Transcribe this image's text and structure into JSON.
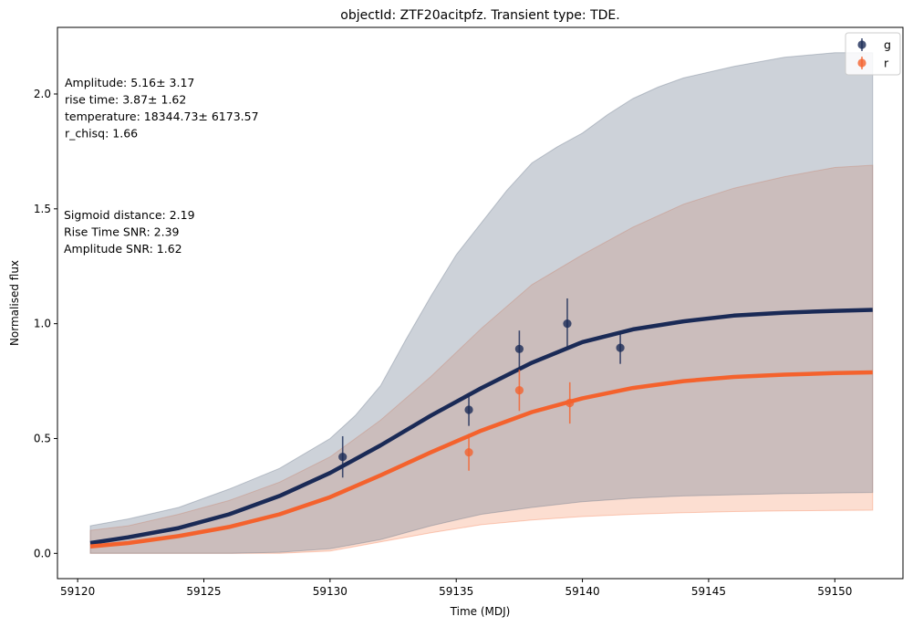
{
  "chart_data": {
    "type": "line",
    "title": "objectId: ZTF20acitpfz. Transient type: TDE.",
    "xlabel": "Time (MDJ)",
    "ylabel": "Normalised flux",
    "xlim": [
      59119.2,
      59152.7
    ],
    "ylim": [
      -0.11,
      2.29
    ],
    "xticks": [
      59120,
      59125,
      59130,
      59135,
      59140,
      59145,
      59150
    ],
    "yticks": [
      0.0,
      0.5,
      1.0,
      1.5,
      2.0
    ],
    "grid": false,
    "legend_position": "top-right",
    "series": [
      {
        "name": "g",
        "color": "#1a2a56",
        "fit_curve": {
          "x": [
            59120.5,
            59122.0,
            59124.0,
            59126.0,
            59128.0,
            59130.0,
            59132.0,
            59134.0,
            59136.0,
            59138.0,
            59140.0,
            59142.0,
            59144.0,
            59146.0,
            59148.0,
            59150.0,
            59151.5
          ],
          "y": [
            0.045,
            0.07,
            0.11,
            0.17,
            0.25,
            0.35,
            0.47,
            0.6,
            0.72,
            0.83,
            0.92,
            0.975,
            1.01,
            1.035,
            1.048,
            1.056,
            1.06
          ]
        },
        "band_upper": {
          "x": [
            59120.5,
            59122.0,
            59124.0,
            59126.0,
            59128.0,
            59130.0,
            59131.0,
            59132.0,
            59133.0,
            59134.0,
            59135.0,
            59136.0,
            59137.0,
            59138.0,
            59139.0,
            59140.0,
            59141.0,
            59142.0,
            59143.0,
            59144.0,
            59146.0,
            59148.0,
            59150.0,
            59151.5
          ],
          "y": [
            0.12,
            0.15,
            0.2,
            0.28,
            0.37,
            0.5,
            0.6,
            0.73,
            0.93,
            1.12,
            1.3,
            1.44,
            1.58,
            1.7,
            1.77,
            1.83,
            1.91,
            1.98,
            2.03,
            2.07,
            2.12,
            2.16,
            2.18,
            2.18
          ]
        },
        "band_lower": {
          "x": [
            59120.5,
            59122.0,
            59124.0,
            59126.0,
            59128.0,
            59130.0,
            59132.0,
            59134.0,
            59136.0,
            59138.0,
            59140.0,
            59142.0,
            59144.0,
            59146.0,
            59148.0,
            59150.0,
            59151.5
          ],
          "y": [
            0.0,
            0.0,
            0.0,
            0.0,
            0.005,
            0.02,
            0.06,
            0.12,
            0.17,
            0.2,
            0.225,
            0.24,
            0.25,
            0.255,
            0.26,
            0.263,
            0.265
          ]
        },
        "points": [
          {
            "x": 59130.5,
            "y": 0.42,
            "err": 0.09
          },
          {
            "x": 59135.5,
            "y": 0.625,
            "err": 0.07
          },
          {
            "x": 59137.5,
            "y": 0.89,
            "err": 0.08
          },
          {
            "x": 59139.4,
            "y": 1.0,
            "err": 0.11
          },
          {
            "x": 59141.5,
            "y": 0.895,
            "err": 0.07
          }
        ]
      },
      {
        "name": "r",
        "color": "#f4622d",
        "fit_curve": {
          "x": [
            59120.5,
            59122.0,
            59124.0,
            59126.0,
            59128.0,
            59130.0,
            59132.0,
            59134.0,
            59136.0,
            59138.0,
            59140.0,
            59142.0,
            59144.0,
            59146.0,
            59148.0,
            59150.0,
            59151.5
          ],
          "y": [
            0.03,
            0.045,
            0.075,
            0.115,
            0.17,
            0.245,
            0.34,
            0.44,
            0.535,
            0.615,
            0.675,
            0.72,
            0.75,
            0.768,
            0.778,
            0.785,
            0.788
          ]
        },
        "band_upper": {
          "x": [
            59120.5,
            59122.0,
            59124.0,
            59126.0,
            59128.0,
            59130.0,
            59132.0,
            59134.0,
            59136.0,
            59138.0,
            59140.0,
            59142.0,
            59144.0,
            59146.0,
            59148.0,
            59150.0,
            59151.5
          ],
          "y": [
            0.1,
            0.12,
            0.17,
            0.23,
            0.31,
            0.42,
            0.58,
            0.77,
            0.98,
            1.17,
            1.3,
            1.42,
            1.52,
            1.59,
            1.64,
            1.68,
            1.69
          ]
        },
        "band_lower": {
          "x": [
            59120.5,
            59124.0,
            59128.0,
            59130.0,
            59132.0,
            59134.0,
            59136.0,
            59138.0,
            59140.0,
            59142.0,
            59144.0,
            59146.0,
            59148.0,
            59150.0,
            59151.5
          ],
          "y": [
            0.0,
            0.0,
            0.0,
            0.01,
            0.05,
            0.09,
            0.125,
            0.145,
            0.16,
            0.17,
            0.177,
            0.182,
            0.185,
            0.187,
            0.188
          ]
        },
        "points": [
          {
            "x": 59135.5,
            "y": 0.44,
            "err": 0.08
          },
          {
            "x": 59137.5,
            "y": 0.71,
            "err": 0.09
          },
          {
            "x": 59139.5,
            "y": 0.655,
            "err": 0.09
          }
        ]
      }
    ],
    "annotations": {
      "fit_params": [
        "Amplitude: 5.16± 3.17",
        "rise time: 3.87± 1.62",
        "temperature: 18344.73± 6173.57",
        "r_chisq: 1.66"
      ],
      "stats": [
        "Sigmoid distance: 2.19",
        "Rise Time SNR: 2.39",
        "Amplitude SNR: 1.62"
      ]
    }
  }
}
